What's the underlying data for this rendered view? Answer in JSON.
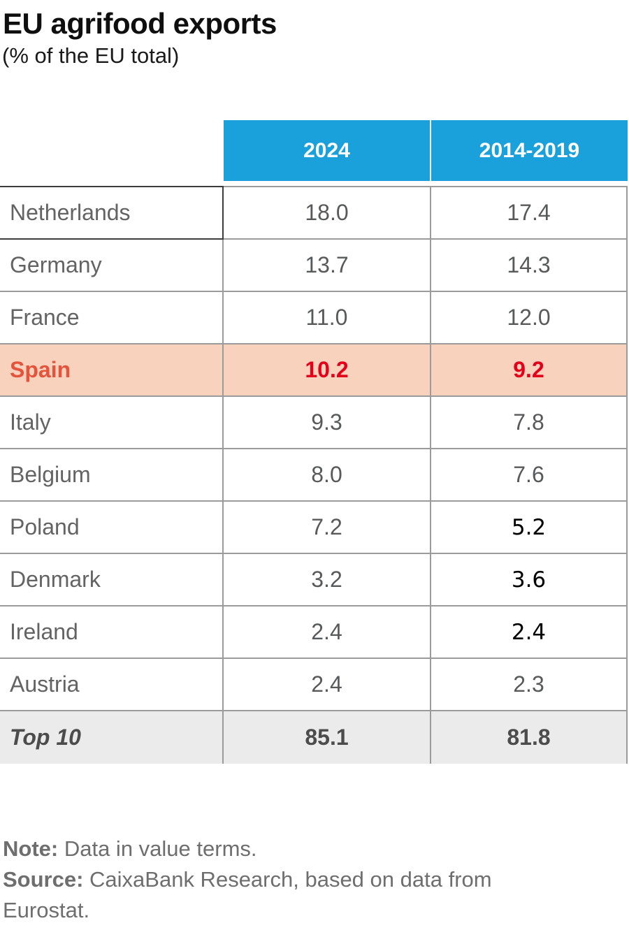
{
  "header": {
    "title": "EU agrifood exports",
    "subtitle": "(% of the EU total)"
  },
  "table": {
    "columns": [
      "2024",
      "2014-2019"
    ],
    "rows": [
      {
        "country": "Netherlands",
        "v2024": "18.0",
        "v2014": "17.4"
      },
      {
        "country": "Germany",
        "v2024": "13.7",
        "v2014": "14.3"
      },
      {
        "country": "France",
        "v2024": "11.0",
        "v2014": "12.0"
      },
      {
        "country": "Spain",
        "v2024": "10.2",
        "v2014": "9.2"
      },
      {
        "country": "Italy",
        "v2024": "9.3",
        "v2014": "7.8"
      },
      {
        "country": "Belgium",
        "v2024": "8.0",
        "v2014": "7.6"
      },
      {
        "country": "Poland",
        "v2024": "7.2",
        "v2014": "5.2"
      },
      {
        "country": "Denmark",
        "v2024": "3.2",
        "v2014": "3.6"
      },
      {
        "country": "Ireland",
        "v2024": "2.4",
        "v2014": "2.4"
      },
      {
        "country": "Austria",
        "v2024": "2.4",
        "v2014": "2.3"
      },
      {
        "country": "Top 10",
        "v2024": "85.1",
        "v2014": "81.8"
      }
    ],
    "highlighted_row": "Spain",
    "total_row": "Top 10"
  },
  "footer": {
    "note_label": "Note:",
    "note_text": " Data in value terms.",
    "source_label": "Source:",
    "source_text": " CaixaBank Research, based on data from Eurostat."
  },
  "colors": {
    "header_blue": "#1aa0da",
    "highlight_bg": "#f9d2bd",
    "highlight_label_red": "#e4543c",
    "highlight_value_red": "#e2001a",
    "total_row_bg": "#ebebeb",
    "border_gray": "#9b9b9b",
    "border_dark": "#3d3d3d",
    "body_text_gray": "#58595b"
  },
  "chart_data": {
    "type": "table",
    "title": "EU agrifood exports",
    "subtitle": "(% of the EU total)",
    "categories": [
      "Netherlands",
      "Germany",
      "France",
      "Spain",
      "Italy",
      "Belgium",
      "Poland",
      "Denmark",
      "Ireland",
      "Austria",
      "Top 10"
    ],
    "series": [
      {
        "name": "2024",
        "values": [
          18.0,
          13.7,
          11.0,
          10.2,
          9.3,
          8.0,
          7.2,
          3.2,
          2.4,
          2.4,
          85.1
        ]
      },
      {
        "name": "2014-2019",
        "values": [
          17.4,
          14.3,
          12.0,
          9.2,
          7.8,
          7.6,
          5.2,
          3.6,
          2.4,
          2.3,
          81.8
        ]
      }
    ],
    "note": "Data in value terms.",
    "source": "CaixaBank Research, based on data from Eurostat."
  }
}
